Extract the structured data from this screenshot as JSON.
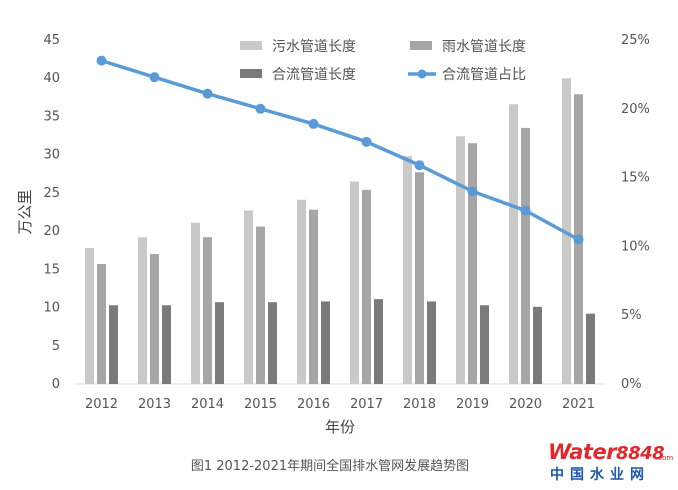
{
  "chart_data": {
    "type": "bar",
    "categories": [
      "2012",
      "2013",
      "2014",
      "2015",
      "2016",
      "2017",
      "2018",
      "2019",
      "2020",
      "2021"
    ],
    "series": [
      {
        "name": "污水管道长度",
        "type": "bar",
        "axis": "left",
        "color": "#c9c9c9",
        "values": [
          17.8,
          19.2,
          21.1,
          22.7,
          24.1,
          26.5,
          29.8,
          32.4,
          36.6,
          40.0
        ]
      },
      {
        "name": "雨水管道长度",
        "type": "bar",
        "axis": "left",
        "color": "#a6a6a6",
        "values": [
          15.7,
          17.0,
          19.2,
          20.6,
          22.8,
          25.4,
          27.7,
          31.5,
          33.5,
          37.9
        ]
      },
      {
        "name": "合流管道长度",
        "type": "bar",
        "axis": "left",
        "color": "#7a7a7a",
        "values": [
          10.3,
          10.3,
          10.7,
          10.7,
          10.8,
          11.1,
          10.8,
          10.3,
          10.1,
          9.2
        ]
      },
      {
        "name": "合流管道占比",
        "type": "line",
        "axis": "right",
        "color": "#5b9bd5",
        "values": [
          23.5,
          22.3,
          21.1,
          20.0,
          18.9,
          17.6,
          15.9,
          14.0,
          12.6,
          10.5
        ]
      }
    ],
    "xlabel": "年份",
    "ylabel": "万公里",
    "ylim": [
      0,
      45
    ],
    "yticks": [
      "0",
      "5",
      "10",
      "15",
      "20",
      "25",
      "30",
      "35",
      "40",
      "45"
    ],
    "y2lim": [
      0,
      25
    ],
    "y2ticks": [
      "0%",
      "5%",
      "10%",
      "15%",
      "20%",
      "25%"
    ],
    "grid": false,
    "legend_position": "top"
  },
  "caption": "图1  2012-2021年期间全国排水管网发展趋势图",
  "watermark": {
    "brand_text": "Water",
    "brand_number": "8848",
    "brand_suffix": ".com",
    "subtitle": "中国水业网"
  }
}
